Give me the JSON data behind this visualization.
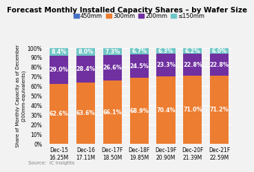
{
  "title": "Forecast Monthly Installed Capacity Shares – by Wafer Size",
  "categories": [
    "Dec-15\n16.25M",
    "Dec-16\n17.11M",
    "Dec-17F\n18.50M",
    "Dec-18F\n19.85M",
    "Dec-19F\n20.90M",
    "Dec-20F\n21.39M",
    "Dec-21F\n22.59M"
  ],
  "series": [
    {
      "label": "450mm",
      "color": "#4472C4",
      "values": [
        0.0,
        0.0,
        0.0,
        0.0,
        0.0,
        0.0,
        0.0
      ]
    },
    {
      "label": "300mm",
      "color": "#ED7D31",
      "values": [
        62.6,
        63.6,
        66.1,
        68.9,
        70.4,
        71.0,
        71.2
      ]
    },
    {
      "label": "200mm",
      "color": "#7030A0",
      "values": [
        29.0,
        28.4,
        26.6,
        24.5,
        23.3,
        22.8,
        22.8
      ]
    },
    {
      "label": "≤150mm",
      "color": "#70C6C6",
      "values": [
        8.4,
        8.0,
        7.3,
        6.7,
        6.3,
        6.2,
        6.0
      ]
    }
  ],
  "ylabel": "Share of Monthly Capacity as of December\n(200mm-equivalents)",
  "ylim": [
    0,
    100
  ],
  "yticks": [
    0,
    10,
    20,
    30,
    40,
    50,
    60,
    70,
    80,
    90,
    100
  ],
  "ytick_labels": [
    "0%",
    "10%",
    "20%",
    "30%",
    "40%",
    "50%",
    "60%",
    "70%",
    "80%",
    "90%",
    "100%"
  ],
  "source": "Source:  IC Insights",
  "background_color": "#F2F2F2",
  "bar_text_color": "#FFFFFF",
  "title_fontsize": 7.5,
  "label_fontsize": 5.8,
  "tick_fontsize": 5.5,
  "legend_fontsize": 6.0,
  "ylabel_fontsize": 5.0,
  "source_fontsize": 5.0
}
